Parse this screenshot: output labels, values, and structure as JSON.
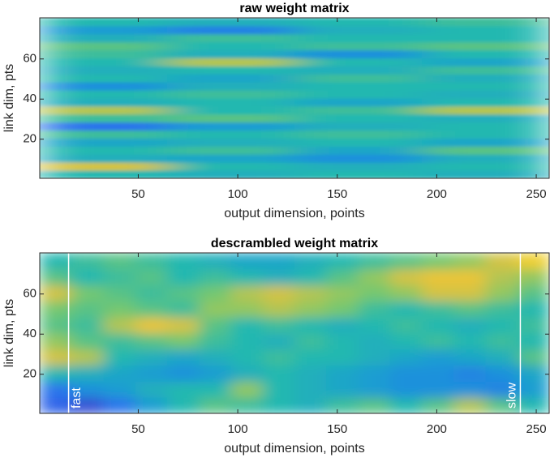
{
  "chart_data": [
    {
      "type": "heatmap",
      "title": "raw weight matrix",
      "xlabel": "output dimension, points",
      "ylabel": "link dim, pts",
      "xlim": [
        0.5,
        256.5
      ],
      "ylim": [
        0.5,
        80.5
      ],
      "xticks": [
        50,
        100,
        150,
        200,
        250
      ],
      "yticks": [
        20,
        40,
        60
      ],
      "zlim": [
        0,
        1
      ],
      "colormap": [
        "#3e26a8",
        "#2d6bf0",
        "#1a9ad6",
        "#22b8b0",
        "#7ec96a",
        "#e8c13a",
        "#f9e51d"
      ],
      "z": [
        [
          0.5,
          0.45,
          0.5,
          0.45
        ],
        [
          0.8,
          0.5,
          0.45,
          0.5
        ],
        [
          0.45,
          0.4,
          0.3,
          0.45
        ],
        [
          0.5,
          0.55,
          0.4,
          0.6
        ],
        [
          0.4,
          0.45,
          0.5,
          0.4
        ],
        [
          0.55,
          0.5,
          0.55,
          0.5
        ],
        [
          0.2,
          0.35,
          0.45,
          0.5
        ],
        [
          0.55,
          0.6,
          0.5,
          0.45
        ],
        [
          0.75,
          0.5,
          0.55,
          0.75
        ],
        [
          0.45,
          0.5,
          0.4,
          0.5
        ],
        [
          0.5,
          0.55,
          0.5,
          0.45
        ],
        [
          0.3,
          0.45,
          0.5,
          0.5
        ],
        [
          0.5,
          0.4,
          0.55,
          0.45
        ],
        [
          0.45,
          0.5,
          0.45,
          0.55
        ],
        [
          0.5,
          0.75,
          0.5,
          0.4
        ],
        [
          0.55,
          0.45,
          0.3,
          0.5
        ],
        [
          0.6,
          0.5,
          0.55,
          0.6
        ],
        [
          0.45,
          0.55,
          0.5,
          0.5
        ],
        [
          0.35,
          0.25,
          0.45,
          0.5
        ],
        [
          0.5,
          0.45,
          0.5,
          0.55
        ]
      ]
    },
    {
      "type": "heatmap",
      "title": "descrambled weight matrix",
      "xlabel": "output dimension, points",
      "ylabel": "link dim, pts",
      "xlim": [
        0.5,
        256.5
      ],
      "ylim": [
        0.5,
        80.5
      ],
      "xticks": [
        50,
        100,
        150,
        200,
        250
      ],
      "yticks": [
        20,
        40,
        60
      ],
      "zlim": [
        0,
        1
      ],
      "colormap": [
        "#3e26a8",
        "#2d6bf0",
        "#1a9ad6",
        "#22b8b0",
        "#7ec96a",
        "#e8c13a",
        "#f9e51d"
      ],
      "z": [
        [
          0.15,
          0.1,
          0.2,
          0.35,
          0.5,
          0.6,
          0.55,
          0.5,
          0.45,
          0.55,
          0.6,
          0.5,
          0.6,
          0.75,
          0.6,
          0.5
        ],
        [
          0.2,
          0.3,
          0.35,
          0.45,
          0.5,
          0.5,
          0.7,
          0.5,
          0.45,
          0.4,
          0.35,
          0.3,
          0.3,
          0.3,
          0.25,
          0.35
        ],
        [
          0.5,
          0.45,
          0.4,
          0.35,
          0.3,
          0.35,
          0.45,
          0.5,
          0.45,
          0.4,
          0.35,
          0.3,
          0.3,
          0.25,
          0.3,
          0.4
        ],
        [
          0.8,
          0.75,
          0.5,
          0.45,
          0.4,
          0.45,
          0.5,
          0.55,
          0.5,
          0.5,
          0.45,
          0.4,
          0.35,
          0.4,
          0.45,
          0.6
        ],
        [
          0.7,
          0.6,
          0.55,
          0.6,
          0.65,
          0.55,
          0.5,
          0.45,
          0.55,
          0.5,
          0.45,
          0.5,
          0.55,
          0.5,
          0.55,
          0.5
        ],
        [
          0.6,
          0.55,
          0.75,
          0.85,
          0.8,
          0.6,
          0.5,
          0.55,
          0.5,
          0.45,
          0.5,
          0.55,
          0.5,
          0.45,
          0.5,
          0.55
        ],
        [
          0.65,
          0.6,
          0.65,
          0.6,
          0.55,
          0.7,
          0.7,
          0.75,
          0.7,
          0.65,
          0.55,
          0.5,
          0.55,
          0.6,
          0.55,
          0.5
        ],
        [
          0.8,
          0.65,
          0.6,
          0.55,
          0.6,
          0.65,
          0.75,
          0.8,
          0.75,
          0.7,
          0.65,
          0.7,
          0.8,
          0.8,
          0.7,
          0.6
        ],
        [
          0.6,
          0.5,
          0.55,
          0.6,
          0.5,
          0.55,
          0.5,
          0.45,
          0.5,
          0.6,
          0.7,
          0.8,
          0.85,
          0.85,
          0.75,
          0.7
        ],
        [
          0.5,
          0.55,
          0.6,
          0.55,
          0.5,
          0.45,
          0.4,
          0.4,
          0.45,
          0.5,
          0.55,
          0.6,
          0.65,
          0.7,
          0.8,
          0.9
        ]
      ],
      "annotations": [
        {
          "text": "fast",
          "x": 15
        },
        {
          "text": "slow",
          "x": 242
        }
      ]
    }
  ]
}
